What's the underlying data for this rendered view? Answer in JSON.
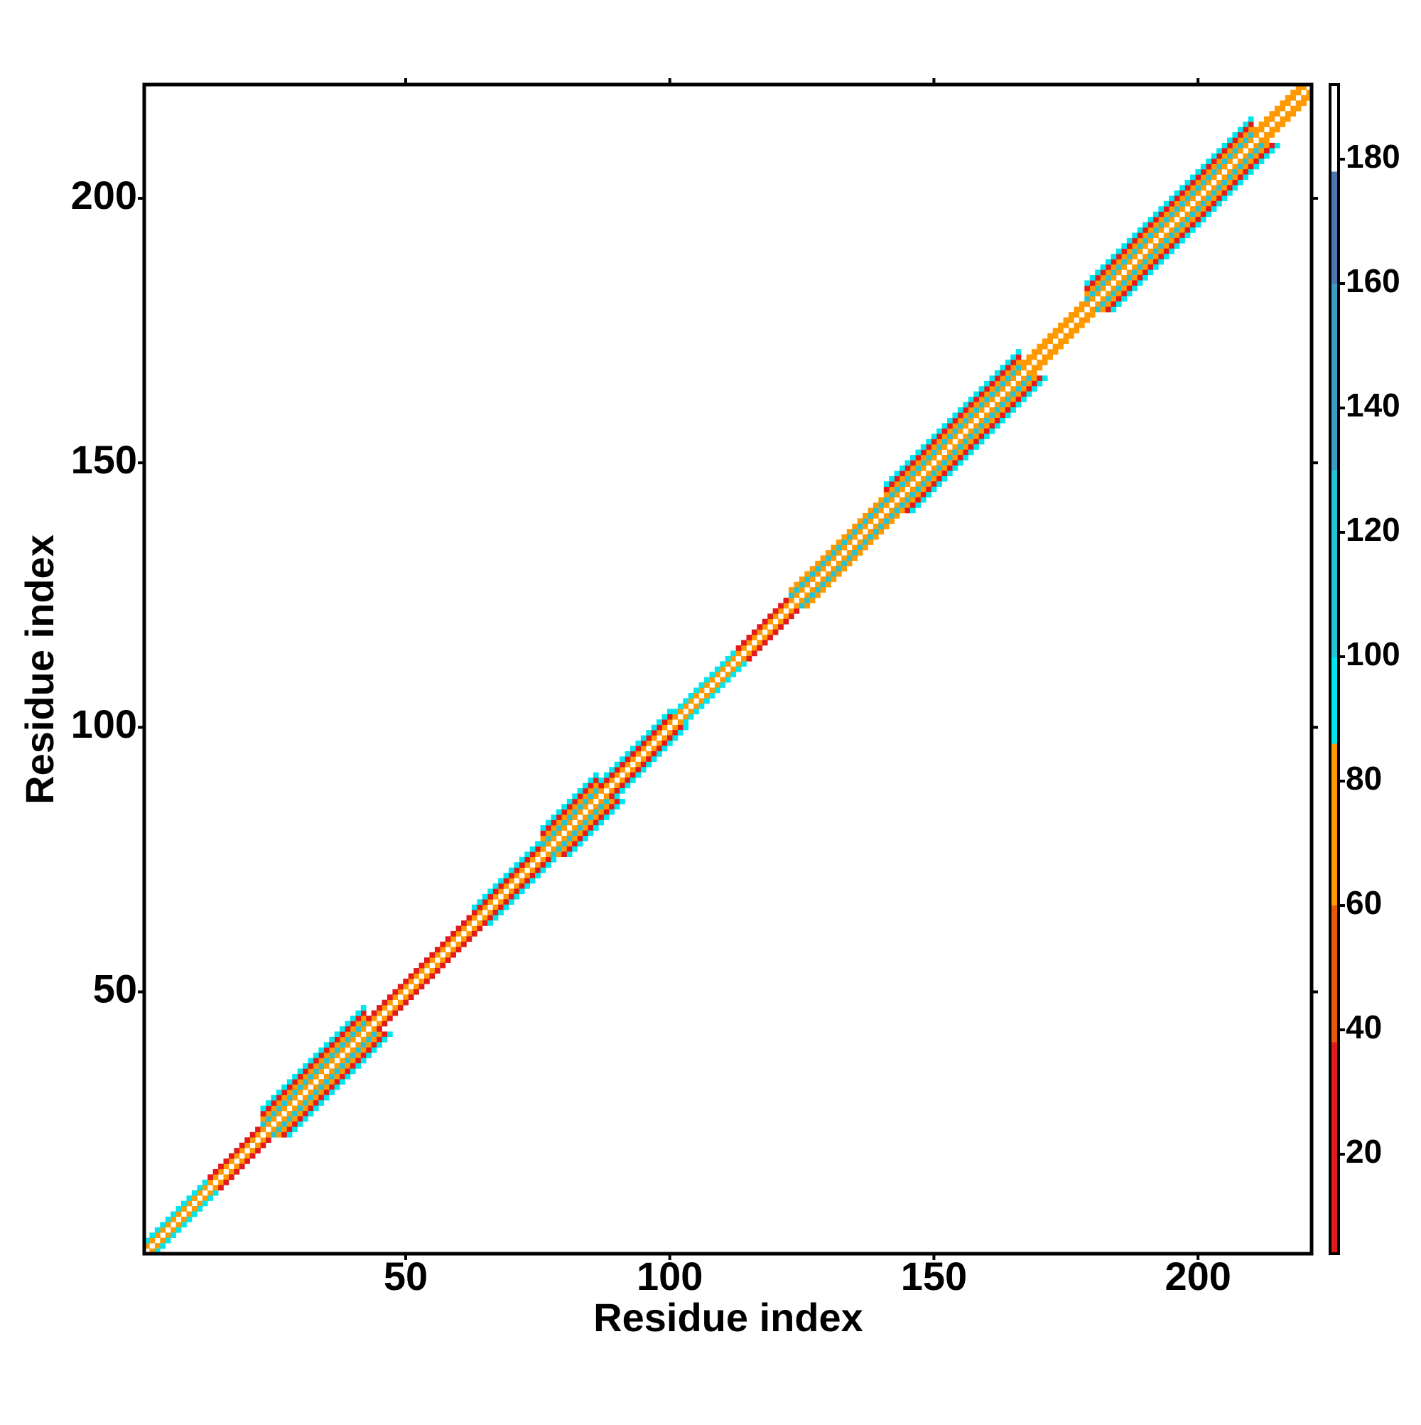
{
  "chart_data": {
    "type": "heatmap",
    "xlabel": "Residue index",
    "ylabel": "Residue index",
    "xlim": [
      0.5,
      221.5
    ],
    "ylim": [
      0.5,
      221.5
    ],
    "xticks": [
      50,
      100,
      150,
      200
    ],
    "yticks": [
      50,
      100,
      150,
      200
    ],
    "zlim": [
      4,
      192
    ],
    "zticks": [
      20,
      40,
      60,
      80,
      100,
      120,
      140,
      160,
      180
    ],
    "colorbins": [
      {
        "min": 4,
        "max": 38,
        "color": "#e31a1c"
      },
      {
        "min": 38,
        "max": 60,
        "color": "#e8590c"
      },
      {
        "min": 60,
        "max": 86,
        "color": "#ff9900"
      },
      {
        "min": 86,
        "max": 100,
        "color": "#00e5ee"
      },
      {
        "min": 100,
        "max": 130,
        "color": "#22c4d8"
      },
      {
        "min": 130,
        "max": 160,
        "color": "#3a9bc8"
      },
      {
        "min": 160,
        "max": 178,
        "color": "#4a78b0"
      },
      {
        "min": 178,
        "max": 192,
        "color": "#ffffff"
      }
    ],
    "segments": [
      {
        "start": 1,
        "end": 12,
        "values": [
          190,
          70,
          95
        ]
      },
      {
        "start": 13,
        "end": 22,
        "values": [
          190,
          65,
          30
        ]
      },
      {
        "start": 23,
        "end": 42,
        "values": [
          190,
          60,
          110,
          70,
          30,
          95
        ]
      },
      {
        "start": 43,
        "end": 62,
        "values": [
          190,
          70,
          30
        ]
      },
      {
        "start": 63,
        "end": 75,
        "values": [
          190,
          65,
          30,
          95
        ]
      },
      {
        "start": 76,
        "end": 86,
        "values": [
          190,
          60,
          100,
          70,
          30,
          95
        ]
      },
      {
        "start": 87,
        "end": 100,
        "values": [
          190,
          70,
          30,
          95
        ]
      },
      {
        "start": 101,
        "end": 112,
        "values": [
          190,
          70,
          95
        ]
      },
      {
        "start": 113,
        "end": 122,
        "values": [
          190,
          65,
          30
        ]
      },
      {
        "start": 123,
        "end": 140,
        "values": [
          190,
          60,
          100,
          70
        ]
      },
      {
        "start": 141,
        "end": 166,
        "values": [
          190,
          60,
          110,
          70,
          30,
          95
        ]
      },
      {
        "start": 167,
        "end": 178,
        "values": [
          190,
          70,
          75
        ]
      },
      {
        "start": 179,
        "end": 210,
        "values": [
          190,
          60,
          110,
          70,
          30,
          95
        ]
      },
      {
        "start": 211,
        "end": 221,
        "values": [
          190,
          70,
          75
        ]
      }
    ]
  }
}
